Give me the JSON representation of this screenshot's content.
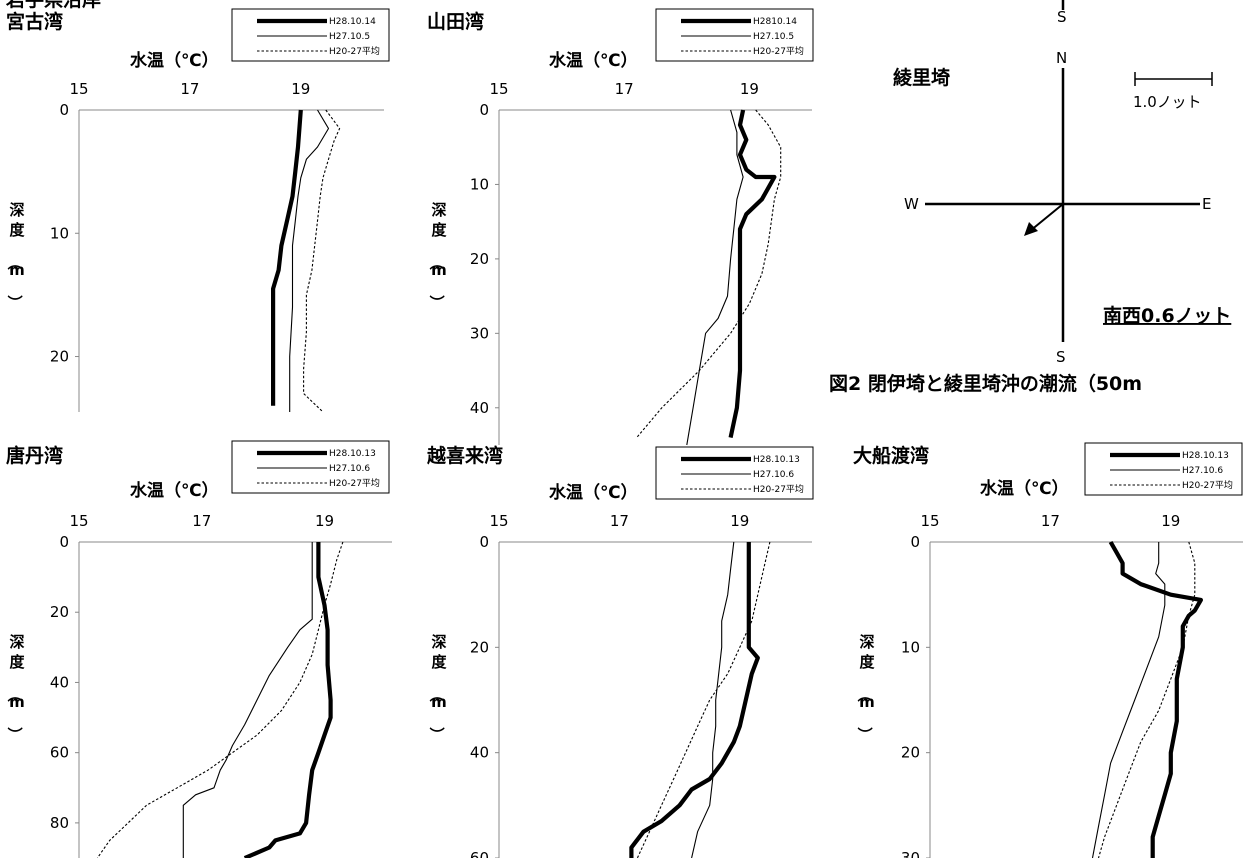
{
  "page_header_fragment": "岩手県沿岸",
  "figure2": {
    "site": "綾里埼",
    "scale_label": "1.0ノット",
    "current_label": "南西0.6ノット",
    "current_speed_knots": 0.6,
    "current_direction": "southwest",
    "compass": {
      "north": "N",
      "south": "S",
      "west": "W",
      "east": "E",
      "south_top": "S"
    },
    "caption": "図2 閉伊埼と綾里埼沖の潮流（50m"
  },
  "chart_data": [
    {
      "type": "line",
      "title": "宮古湾",
      "xlabel": "水温（℃）",
      "ylabel": "深度（m）",
      "xlim": [
        15,
        20.5
      ],
      "xticks": [
        15,
        17,
        19
      ],
      "ylim": [
        0,
        24.5
      ],
      "yticks": [
        0,
        10,
        20
      ],
      "x_axis_position": "top",
      "y_inverted": true,
      "series": [
        {
          "name": "H28.10.14",
          "style": "thick",
          "points": [
            [
              19.0,
              0
            ],
            [
              18.95,
              3
            ],
            [
              18.9,
              5
            ],
            [
              18.85,
              7
            ],
            [
              18.75,
              9
            ],
            [
              18.65,
              11
            ],
            [
              18.6,
              13
            ],
            [
              18.5,
              14.5
            ],
            [
              18.5,
              17
            ],
            [
              18.5,
              20
            ],
            [
              18.5,
              24
            ]
          ]
        },
        {
          "name": "H27.10.5",
          "style": "thin",
          "points": [
            [
              19.3,
              0
            ],
            [
              19.5,
              1.5
            ],
            [
              19.3,
              3
            ],
            [
              19.1,
              4
            ],
            [
              19.0,
              5.5
            ],
            [
              18.95,
              7
            ],
            [
              18.9,
              9
            ],
            [
              18.85,
              11
            ],
            [
              18.85,
              13
            ],
            [
              18.85,
              16
            ],
            [
              18.8,
              20
            ],
            [
              18.8,
              24.5
            ]
          ]
        },
        {
          "name": "H20-27平均",
          "style": "dotted",
          "points": [
            [
              19.45,
              0
            ],
            [
              19.7,
              1.5
            ],
            [
              19.6,
              2.5
            ],
            [
              19.5,
              4
            ],
            [
              19.4,
              5.5
            ],
            [
              19.35,
              7
            ],
            [
              19.3,
              9
            ],
            [
              19.25,
              11
            ],
            [
              19.2,
              13
            ],
            [
              19.1,
              15
            ],
            [
              19.1,
              18
            ],
            [
              19.05,
              21
            ],
            [
              19.05,
              23
            ],
            [
              19.4,
              24.5
            ]
          ]
        }
      ]
    },
    {
      "type": "line",
      "title": "山田湾",
      "xlabel": "水温（℃）",
      "ylabel": "深度（m）",
      "xlim": [
        15,
        20
      ],
      "xticks": [
        15,
        17,
        19
      ],
      "ylim": [
        0,
        45
      ],
      "yticks": [
        0,
        10,
        20,
        30,
        40
      ],
      "x_axis_position": "top",
      "y_inverted": true,
      "series": [
        {
          "name": "H2810.14",
          "style": "thick",
          "points": [
            [
              18.9,
              0
            ],
            [
              18.85,
              2
            ],
            [
              18.95,
              4
            ],
            [
              18.85,
              6
            ],
            [
              18.95,
              8
            ],
            [
              19.1,
              9
            ],
            [
              19.4,
              9
            ],
            [
              19.2,
              12
            ],
            [
              18.95,
              14
            ],
            [
              18.85,
              16
            ],
            [
              18.85,
              20
            ],
            [
              18.85,
              25
            ],
            [
              18.85,
              30
            ],
            [
              18.85,
              35
            ],
            [
              18.8,
              40
            ],
            [
              18.7,
              44
            ]
          ]
        },
        {
          "name": "H27.10.5",
          "style": "thin",
          "points": [
            [
              18.7,
              0
            ],
            [
              18.8,
              3
            ],
            [
              18.8,
              6
            ],
            [
              18.9,
              9
            ],
            [
              18.8,
              12
            ],
            [
              18.75,
              16
            ],
            [
              18.7,
              20
            ],
            [
              18.65,
              25
            ],
            [
              18.5,
              28
            ],
            [
              18.3,
              30
            ],
            [
              18.2,
              35
            ],
            [
              18.1,
              40
            ],
            [
              18.0,
              45
            ]
          ]
        },
        {
          "name": "H20-27平均",
          "style": "dotted",
          "points": [
            [
              19.1,
              0
            ],
            [
              19.3,
              2
            ],
            [
              19.5,
              5
            ],
            [
              19.5,
              9
            ],
            [
              19.4,
              12
            ],
            [
              19.35,
              15
            ],
            [
              19.3,
              18
            ],
            [
              19.2,
              22
            ],
            [
              19.0,
              26
            ],
            [
              18.7,
              30
            ],
            [
              18.2,
              35
            ],
            [
              17.6,
              40
            ],
            [
              17.2,
              44
            ]
          ]
        }
      ]
    },
    {
      "type": "line",
      "title": "唐丹湾",
      "xlabel": "水温（℃）",
      "ylabel": "深度（m）",
      "xlim": [
        15,
        20.1
      ],
      "xticks": [
        15,
        17,
        19
      ],
      "ylim": [
        0,
        90
      ],
      "yticks": [
        0,
        20,
        40,
        60,
        80
      ],
      "x_axis_position": "top",
      "y_inverted": true,
      "series": [
        {
          "name": "H28.10.13",
          "style": "thick",
          "points": [
            [
              18.9,
              0
            ],
            [
              18.9,
              10
            ],
            [
              19.0,
              18
            ],
            [
              19.05,
              25
            ],
            [
              19.05,
              35
            ],
            [
              19.1,
              45
            ],
            [
              19.1,
              50
            ],
            [
              19.0,
              55
            ],
            [
              18.9,
              60
            ],
            [
              18.8,
              65
            ],
            [
              18.75,
              72
            ],
            [
              18.7,
              80
            ],
            [
              18.6,
              83
            ],
            [
              18.2,
              85
            ],
            [
              18.1,
              87
            ],
            [
              17.7,
              90
            ]
          ]
        },
        {
          "name": "H27.10.6",
          "style": "thin",
          "points": [
            [
              18.8,
              0
            ],
            [
              18.8,
              10
            ],
            [
              18.8,
              17
            ],
            [
              18.8,
              22
            ],
            [
              18.6,
              25
            ],
            [
              18.4,
              30
            ],
            [
              18.1,
              38
            ],
            [
              17.9,
              45
            ],
            [
              17.7,
              52
            ],
            [
              17.5,
              58
            ],
            [
              17.4,
              62
            ],
            [
              17.3,
              65
            ],
            [
              17.2,
              70
            ],
            [
              16.9,
              72
            ],
            [
              16.7,
              75
            ],
            [
              16.7,
              80
            ],
            [
              16.7,
              90
            ]
          ]
        },
        {
          "name": "H20-27平均",
          "style": "dotted",
          "points": [
            [
              19.3,
              0
            ],
            [
              19.2,
              5
            ],
            [
              19.1,
              12
            ],
            [
              19.0,
              18
            ],
            [
              18.9,
              25
            ],
            [
              18.8,
              32
            ],
            [
              18.6,
              40
            ],
            [
              18.3,
              48
            ],
            [
              17.9,
              55
            ],
            [
              17.5,
              60
            ],
            [
              17.1,
              65
            ],
            [
              16.6,
              70
            ],
            [
              16.1,
              75
            ],
            [
              15.8,
              80
            ],
            [
              15.5,
              85
            ],
            [
              15.3,
              90
            ]
          ]
        }
      ]
    },
    {
      "type": "line",
      "title": "越喜来湾",
      "xlabel": "水温（℃）",
      "ylabel": "深度（m）",
      "xlim": [
        15,
        20.2
      ],
      "xticks": [
        15,
        17,
        19
      ],
      "ylim": [
        0,
        60
      ],
      "yticks": [
        0,
        20,
        40,
        60
      ],
      "x_axis_position": "top",
      "y_inverted": true,
      "series": [
        {
          "name": "H28.10.13",
          "style": "thick",
          "points": [
            [
              19.15,
              0
            ],
            [
              19.15,
              5
            ],
            [
              19.15,
              10
            ],
            [
              19.15,
              15
            ],
            [
              19.15,
              20
            ],
            [
              19.3,
              22
            ],
            [
              19.2,
              25
            ],
            [
              19.1,
              30
            ],
            [
              19.0,
              35
            ],
            [
              18.9,
              38
            ],
            [
              18.7,
              42
            ],
            [
              18.5,
              45
            ],
            [
              18.2,
              47
            ],
            [
              18.0,
              50
            ],
            [
              17.7,
              53
            ],
            [
              17.4,
              55
            ],
            [
              17.2,
              58
            ],
            [
              17.2,
              60
            ]
          ]
        },
        {
          "name": "H27.10.6",
          "style": "thin",
          "points": [
            [
              18.9,
              0
            ],
            [
              18.85,
              5
            ],
            [
              18.8,
              10
            ],
            [
              18.7,
              15
            ],
            [
              18.7,
              20
            ],
            [
              18.65,
              25
            ],
            [
              18.6,
              30
            ],
            [
              18.6,
              35
            ],
            [
              18.55,
              40
            ],
            [
              18.55,
              45
            ],
            [
              18.5,
              50
            ],
            [
              18.3,
              55
            ],
            [
              18.2,
              60
            ]
          ]
        },
        {
          "name": "H20-27平均",
          "style": "dotted",
          "points": [
            [
              19.5,
              0
            ],
            [
              19.4,
              5
            ],
            [
              19.3,
              10
            ],
            [
              19.2,
              15
            ],
            [
              19.0,
              20
            ],
            [
              18.8,
              25
            ],
            [
              18.5,
              30
            ],
            [
              18.3,
              35
            ],
            [
              18.1,
              40
            ],
            [
              17.9,
              45
            ],
            [
              17.7,
              50
            ],
            [
              17.5,
              55
            ],
            [
              17.3,
              60
            ]
          ]
        }
      ]
    },
    {
      "type": "line",
      "title": "大船渡湾",
      "xlabel": "水温（℃）",
      "ylabel": "深度（m）",
      "xlim": [
        15,
        20.2
      ],
      "xticks": [
        15,
        17,
        19
      ],
      "ylim": [
        0,
        30
      ],
      "yticks": [
        0,
        10,
        20,
        30
      ],
      "x_axis_position": "top",
      "y_inverted": true,
      "series": [
        {
          "name": "H28.10.13",
          "style": "thick",
          "points": [
            [
              18.0,
              0
            ],
            [
              18.1,
              1
            ],
            [
              18.2,
              2
            ],
            [
              18.2,
              3
            ],
            [
              18.5,
              4
            ],
            [
              19.0,
              5
            ],
            [
              19.5,
              5.5
            ],
            [
              19.4,
              6.5
            ],
            [
              19.3,
              7
            ],
            [
              19.2,
              8
            ],
            [
              19.2,
              10
            ],
            [
              19.1,
              13
            ],
            [
              19.1,
              17
            ],
            [
              19.0,
              20
            ],
            [
              19.0,
              22
            ],
            [
              18.9,
              24
            ],
            [
              18.8,
              26
            ],
            [
              18.7,
              28
            ],
            [
              18.7,
              30
            ]
          ]
        },
        {
          "name": "H27.10.6",
          "style": "thin",
          "points": [
            [
              18.8,
              0
            ],
            [
              18.8,
              2
            ],
            [
              18.75,
              3
            ],
            [
              18.9,
              4
            ],
            [
              18.9,
              6
            ],
            [
              18.8,
              9
            ],
            [
              18.6,
              12
            ],
            [
              18.4,
              15
            ],
            [
              18.2,
              18
            ],
            [
              18.0,
              21
            ],
            [
              17.9,
              24
            ],
            [
              17.8,
              27
            ],
            [
              17.7,
              30
            ]
          ]
        },
        {
          "name": "H20-27平均",
          "style": "dotted",
          "points": [
            [
              19.3,
              0
            ],
            [
              19.4,
              2
            ],
            [
              19.4,
              5
            ],
            [
              19.3,
              7
            ],
            [
              19.2,
              10
            ],
            [
              19.0,
              13
            ],
            [
              18.8,
              16
            ],
            [
              18.5,
              19
            ],
            [
              18.3,
              22
            ],
            [
              18.1,
              25
            ],
            [
              17.9,
              28
            ],
            [
              17.8,
              30
            ]
          ]
        }
      ]
    }
  ]
}
